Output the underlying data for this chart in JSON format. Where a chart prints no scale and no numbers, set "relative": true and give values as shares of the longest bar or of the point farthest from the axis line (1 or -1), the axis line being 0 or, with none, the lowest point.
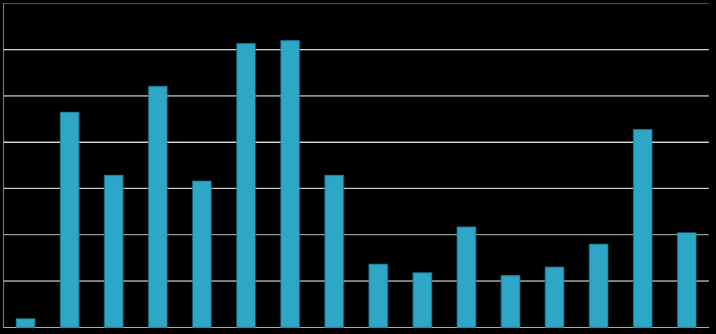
{
  "chart_data": {
    "type": "bar",
    "relative": true,
    "grid": "y",
    "color": "#2ea6c6",
    "categories": [
      null,
      null,
      null,
      null,
      null,
      null,
      null,
      null,
      null,
      null,
      null,
      null,
      null,
      null,
      null,
      null
    ],
    "values": [
      0.03,
      0.75,
      0.53,
      0.84,
      0.51,
      0.99,
      1,
      0.53,
      0.22,
      0.19,
      0.35,
      0.18,
      0.21,
      0.29,
      0.69,
      0.33
    ]
  }
}
